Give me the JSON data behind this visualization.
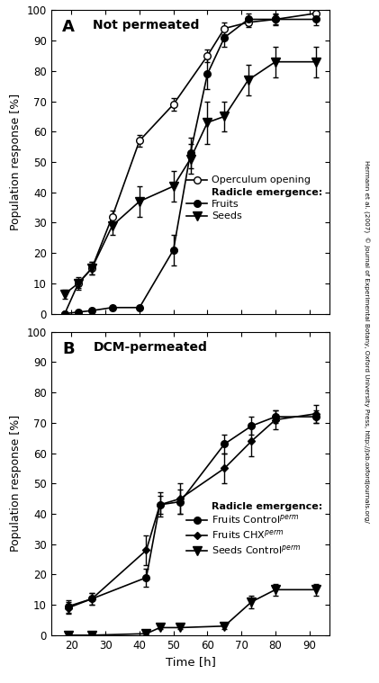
{
  "panel_A": {
    "title": "Not permeated",
    "label": "A",
    "operculum": {
      "x": [
        18,
        22,
        26,
        32,
        40,
        50,
        60,
        65,
        72,
        80,
        92
      ],
      "y": [
        0,
        10,
        15,
        32,
        57,
        69,
        85,
        94,
        96,
        97,
        99
      ],
      "yerr": [
        0,
        1.5,
        2,
        2,
        2,
        2,
        2,
        2,
        1.5,
        1.5,
        1
      ]
    },
    "fruits": {
      "x": [
        18,
        22,
        26,
        32,
        40,
        50,
        55,
        60,
        65,
        72,
        80,
        92
      ],
      "y": [
        0,
        0.5,
        1,
        2,
        2,
        21,
        53,
        79,
        91,
        97,
        97,
        97
      ],
      "yerr": [
        0,
        0.5,
        0.5,
        0.5,
        0.5,
        5,
        5,
        5,
        3,
        2,
        2,
        2
      ]
    },
    "seeds": {
      "x": [
        18,
        22,
        26,
        32,
        40,
        50,
        55,
        60,
        65,
        72,
        80,
        92
      ],
      "y": [
        6.5,
        10,
        15,
        29,
        37,
        42,
        51,
        63,
        65,
        77,
        83,
        83
      ],
      "yerr": [
        1.5,
        2,
        2,
        3,
        5,
        5,
        5,
        7,
        5,
        5,
        5,
        5
      ]
    }
  },
  "panel_B": {
    "title": "DCM-permeated",
    "label": "B",
    "fruits_control": {
      "x": [
        19,
        26,
        42,
        46,
        52,
        65,
        73,
        80,
        92
      ],
      "y": [
        9.5,
        12,
        19,
        43,
        44,
        63,
        69,
        72,
        72
      ],
      "yerr": [
        2,
        2,
        3,
        3,
        4,
        3,
        3,
        2,
        2
      ]
    },
    "fruits_chx": {
      "x": [
        19,
        26,
        42,
        46,
        52,
        65,
        73,
        80,
        92
      ],
      "y": [
        9,
        12,
        28,
        43,
        45,
        55,
        64,
        71,
        73
      ],
      "yerr": [
        2,
        2,
        5,
        4,
        5,
        5,
        5,
        3,
        3
      ]
    },
    "seeds_control": {
      "x": [
        19,
        26,
        42,
        46,
        52,
        65,
        73,
        80,
        92
      ],
      "y": [
        0,
        0,
        0.5,
        2.5,
        2.5,
        3,
        11,
        15,
        15
      ],
      "yerr": [
        0,
        0,
        0.2,
        0.5,
        0.5,
        1,
        2,
        2,
        2
      ]
    }
  },
  "xlabel": "Time [h]",
  "ylabel": "Population response [%]",
  "xlim": [
    14,
    96
  ],
  "ylim_A": [
    0,
    100
  ],
  "ylim_B": [
    0,
    100
  ],
  "xticks": [
    20,
    30,
    40,
    50,
    60,
    70,
    80,
    90
  ],
  "yticks": [
    0,
    10,
    20,
    30,
    40,
    50,
    60,
    70,
    80,
    90,
    100
  ],
  "right_label": "Hermann et al. (2007)  © Journal of Experimental Botany, Oxford University Press, http://jxb.oxfordjournals.org/",
  "color": "#000000",
  "bg_color": "#ffffff"
}
